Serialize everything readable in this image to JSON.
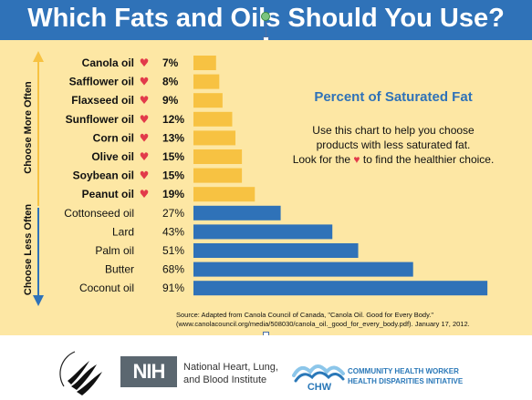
{
  "title": "Which Fats and Oils Should You Use?",
  "side_labels": {
    "more": "Choose More Often",
    "less": "Choose Less Often"
  },
  "annotation": {
    "title": "Percent of Saturated Fat",
    "line1": "Use this chart to help you choose",
    "line2": "products with less saturated fat.",
    "line3_pre": "Look for the",
    "heart": "♥",
    "line3_post": "to find the healthier choice."
  },
  "source": {
    "line1": "Source: Adapted from Canola Council of Canada, \"Canola Oil. Good for Every Body.\"",
    "line2": "(www.canolacouncil.org/media/508030/canola_oil._good_for_every_body.pdf).  January 17, 2012."
  },
  "footer": {
    "nih": "NIH",
    "nhlbi_line1": "National Heart, Lung,",
    "nhlbi_line2": "and Blood Institute",
    "chw_abbr": "CHW",
    "chw_line1": "COMMUNITY HEALTH WORKER",
    "chw_line2": "HEALTH DISPARITIES INITIATIVE"
  },
  "colors": {
    "healthy_bar": "#f7c242",
    "unhealthy_bar": "#2f72b8",
    "heart": "#e23a4a",
    "banner": "#2f72b8",
    "panel": "#fde7a4"
  },
  "chart_data": {
    "type": "bar",
    "orientation": "horizontal",
    "title": "Percent of Saturated Fat",
    "categories": [
      "Canola oil",
      "Safflower oil",
      "Flaxseed oil",
      "Sunflower oil",
      "Corn oil",
      "Olive oil",
      "Soybean oil",
      "Peanut oil",
      "Cottonseed oil",
      "Lard",
      "Palm oil",
      "Butter",
      "Coconut oil"
    ],
    "values": [
      7,
      8,
      9,
      12,
      13,
      15,
      15,
      19,
      27,
      43,
      51,
      68,
      91
    ],
    "value_labels": [
      "7%",
      "8%",
      "9%",
      "12%",
      "13%",
      "15%",
      "15%",
      "19%",
      "27%",
      "43%",
      "51%",
      "68%",
      "91%"
    ],
    "healthier": [
      true,
      true,
      true,
      true,
      true,
      true,
      true,
      true,
      false,
      false,
      false,
      false,
      false
    ],
    "marker": "♥",
    "xlim": [
      0,
      100
    ]
  }
}
